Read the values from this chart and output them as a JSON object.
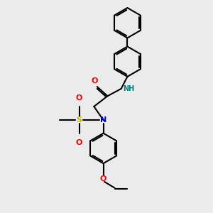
{
  "bg_color": "#ebebeb",
  "line_color": "#000000",
  "bond_width": 1.5,
  "N_color": "#0000cc",
  "O_color": "#ff0000",
  "S_color": "#bbbb00",
  "NH_color": "#008080",
  "figsize": [
    3.0,
    3.0
  ],
  "dpi": 100,
  "xlim": [
    -1.5,
    5.5
  ],
  "ylim": [
    -2.8,
    7.2
  ]
}
